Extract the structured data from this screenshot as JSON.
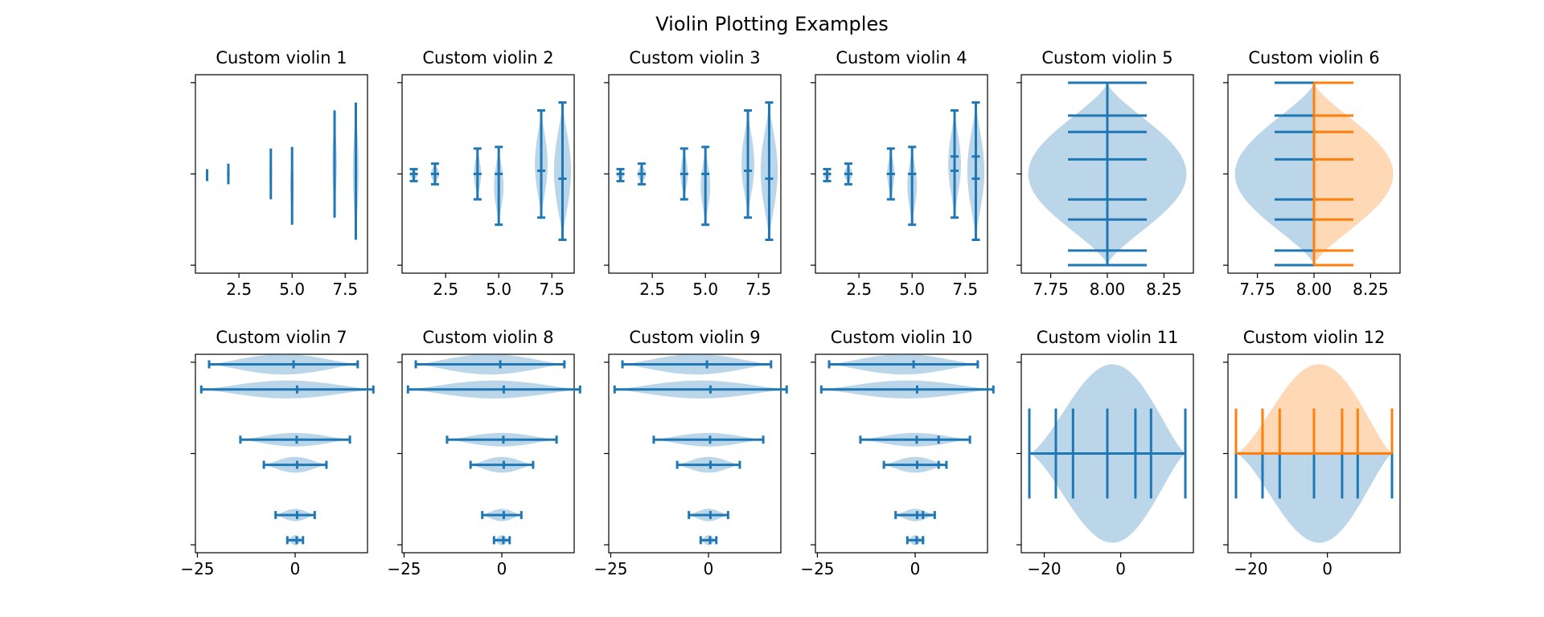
{
  "figure": {
    "title": "Violin Plotting Examples"
  },
  "colors": {
    "body": "#1f77b4",
    "body_alt": "#ff7f0e",
    "fill_alpha": 0.3
  },
  "chart_data": [
    {
      "type": "violin",
      "title": "Custom violin 1",
      "orientation": "vertical",
      "xticks": [
        "2.5",
        "5.0",
        "7.5"
      ],
      "xlim": [
        0.45,
        8.55
      ],
      "ylim": [
        -1.25,
        1.25
      ],
      "yticks_count": 3,
      "show_means": false,
      "show_extrema": false,
      "show_medians": false
    },
    {
      "type": "violin",
      "title": "Custom violin 2",
      "orientation": "vertical",
      "xticks": [
        "2.5",
        "5.0",
        "7.5"
      ],
      "xlim": [
        0.45,
        8.55
      ],
      "ylim": [
        -1.25,
        1.25
      ],
      "yticks_count": 3,
      "show_means": false,
      "show_extrema": true,
      "show_medians": true
    },
    {
      "type": "violin",
      "title": "Custom violin 3",
      "orientation": "vertical",
      "xticks": [
        "2.5",
        "5.0",
        "7.5"
      ],
      "xlim": [
        0.45,
        8.55
      ],
      "ylim": [
        -1.25,
        1.25
      ],
      "yticks_count": 3,
      "show_means": false,
      "show_extrema": true,
      "show_medians": true
    },
    {
      "type": "violin",
      "title": "Custom violin 4",
      "orientation": "vertical",
      "xticks": [
        "2.5",
        "5.0",
        "7.5"
      ],
      "xlim": [
        0.45,
        8.55
      ],
      "ylim": [
        -1.25,
        1.25
      ],
      "yticks_count": 3,
      "show_means": true,
      "show_extrema": true,
      "show_medians": true
    },
    {
      "type": "violin",
      "title": "Custom violin 5",
      "orientation": "vertical",
      "xticks": [
        "7.75",
        "8.00",
        "8.25"
      ],
      "xlim": [
        7.62,
        8.38
      ],
      "ylim": [
        -1.25,
        1.25
      ],
      "yticks_count": 3,
      "quantile_lines": 7
    },
    {
      "type": "violin",
      "title": "Custom violin 6",
      "orientation": "vertical",
      "split": true,
      "xticks": [
        "7.75",
        "8.00",
        "8.25"
      ],
      "xlim": [
        7.62,
        8.38
      ],
      "ylim": [
        -1.25,
        1.25
      ],
      "yticks_count": 3,
      "quantile_lines": 7
    },
    {
      "type": "violin",
      "title": "Custom violin 7",
      "orientation": "horizontal",
      "xticks": [
        "−25",
        "0"
      ],
      "xlim": [
        -25.5,
        18.5
      ],
      "ylim": [
        0.5,
        8.4
      ],
      "yticks_count": 3,
      "show_means": true,
      "show_extrema": true,
      "show_medians": false
    },
    {
      "type": "violin",
      "title": "Custom violin 8",
      "orientation": "horizontal",
      "xticks": [
        "−25",
        "0"
      ],
      "xlim": [
        -25.5,
        18.5
      ],
      "ylim": [
        0.5,
        8.4
      ],
      "yticks_count": 3,
      "show_means": true,
      "show_extrema": true,
      "show_medians": false
    },
    {
      "type": "violin",
      "title": "Custom violin 9",
      "orientation": "horizontal",
      "xticks": [
        "−25",
        "0"
      ],
      "xlim": [
        -25.5,
        18.5
      ],
      "ylim": [
        0.5,
        8.4
      ],
      "yticks_count": 3,
      "show_means": true,
      "show_extrema": true,
      "show_medians": false
    },
    {
      "type": "violin",
      "title": "Custom violin 10",
      "orientation": "horizontal",
      "xticks": [
        "−25",
        "0"
      ],
      "xlim": [
        -25.5,
        18.5
      ],
      "ylim": [
        0.5,
        8.4
      ],
      "yticks_count": 3,
      "show_means": true,
      "show_extrema": true,
      "show_medians": true
    },
    {
      "type": "violin",
      "title": "Custom violin 11",
      "orientation": "horizontal",
      "xticks": [
        "−20",
        "0"
      ],
      "xlim": [
        -26,
        19
      ],
      "ylim": [
        -1.25,
        1.25
      ],
      "yticks_count": 3,
      "quantile_lines": 7
    },
    {
      "type": "violin",
      "title": "Custom violin 12",
      "orientation": "horizontal",
      "split": true,
      "xticks": [
        "−20",
        "0"
      ],
      "xlim": [
        -26,
        19
      ],
      "ylim": [
        -1.25,
        1.25
      ],
      "yticks_count": 3,
      "quantile_lines": 7
    }
  ]
}
